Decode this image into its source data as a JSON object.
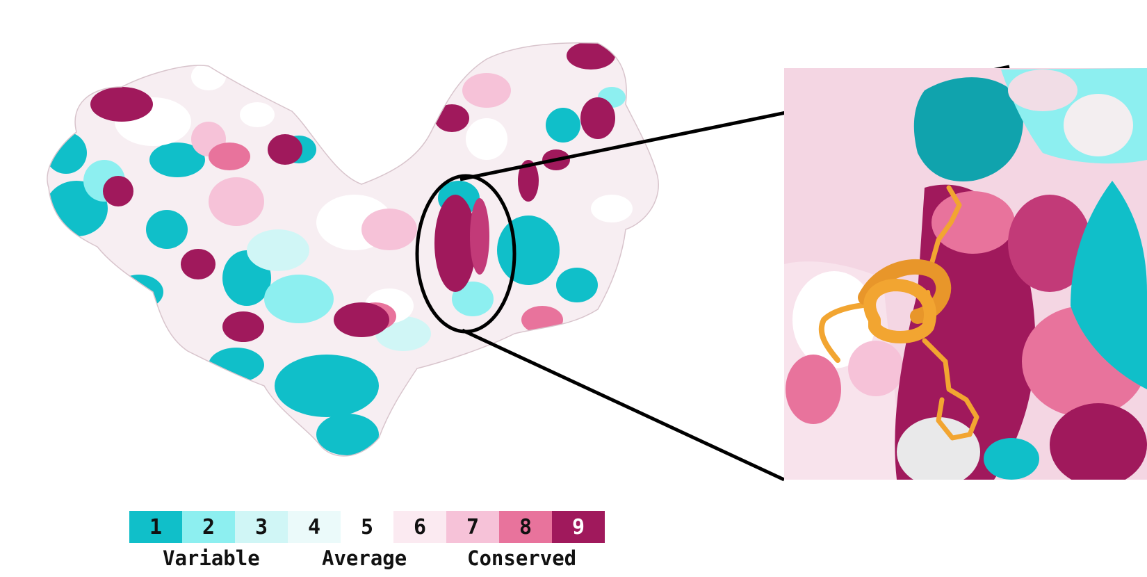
{
  "legend": {
    "bins": [
      {
        "label": "1",
        "color": "#10bfc9",
        "text_color": "#111111"
      },
      {
        "label": "2",
        "color": "#8deff0",
        "text_color": "#111111"
      },
      {
        "label": "3",
        "color": "#d0f6f6",
        "text_color": "#111111"
      },
      {
        "label": "4",
        "color": "#ebfafa",
        "text_color": "#111111"
      },
      {
        "label": "5",
        "color": "#ffffff",
        "text_color": "#111111"
      },
      {
        "label": "6",
        "color": "#fbeaf1",
        "text_color": "#111111"
      },
      {
        "label": "7",
        "color": "#f6c2d8",
        "text_color": "#111111"
      },
      {
        "label": "8",
        "color": "#e8739c",
        "text_color": "#111111"
      },
      {
        "label": "9",
        "color": "#a0195c",
        "text_color": "#ffffff"
      }
    ],
    "label_variable": "Variable",
    "label_average": "Average",
    "label_conserved": "Conserved"
  },
  "colors": {
    "ligand": "#f2a531",
    "callout_lines": "#000000"
  }
}
